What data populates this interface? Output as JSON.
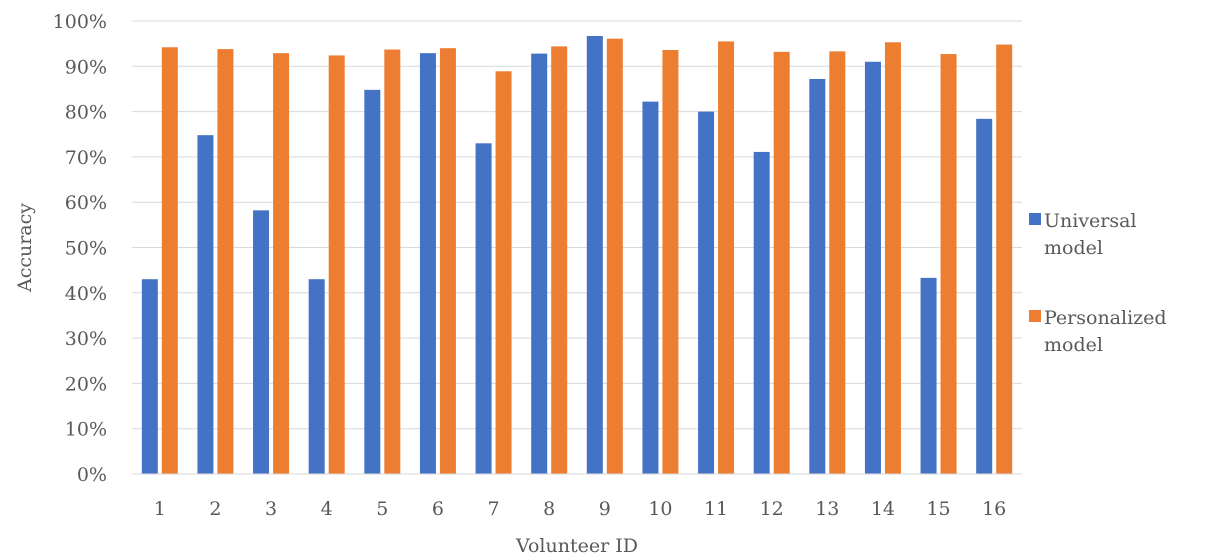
{
  "chart_data": {
    "type": "bar",
    "title": "",
    "xlabel": "Volunteer ID",
    "ylabel": "Accuracy",
    "categories": [
      "1",
      "2",
      "3",
      "4",
      "5",
      "6",
      "7",
      "8",
      "9",
      "10",
      "11",
      "12",
      "13",
      "14",
      "15",
      "16"
    ],
    "series": [
      {
        "name": "Universal model",
        "legend_lines": [
          "Universal",
          "model"
        ],
        "color": "#4472C4",
        "values": [
          0.43,
          0.748,
          0.582,
          0.43,
          0.848,
          0.929,
          0.73,
          0.928,
          0.967,
          0.822,
          0.8,
          0.711,
          0.872,
          0.91,
          0.433,
          0.784
        ]
      },
      {
        "name": "Personalized model",
        "legend_lines": [
          "Personalized",
          "model"
        ],
        "color": "#ED7D31",
        "values": [
          0.942,
          0.938,
          0.929,
          0.924,
          0.937,
          0.94,
          0.889,
          0.944,
          0.961,
          0.936,
          0.955,
          0.932,
          0.933,
          0.953,
          0.927,
          0.948
        ]
      }
    ],
    "ylim": [
      0,
      1
    ],
    "y_ticks": [
      0,
      0.1,
      0.2,
      0.3,
      0.4,
      0.5,
      0.6,
      0.7,
      0.8,
      0.9,
      1
    ],
    "y_tick_labels": [
      "0%",
      "10%",
      "20%",
      "30%",
      "40%",
      "50%",
      "60%",
      "70%",
      "80%",
      "90%",
      "100%"
    ],
    "grid": true,
    "gridline_color": "#D9D9D9",
    "legend_position": "right"
  }
}
